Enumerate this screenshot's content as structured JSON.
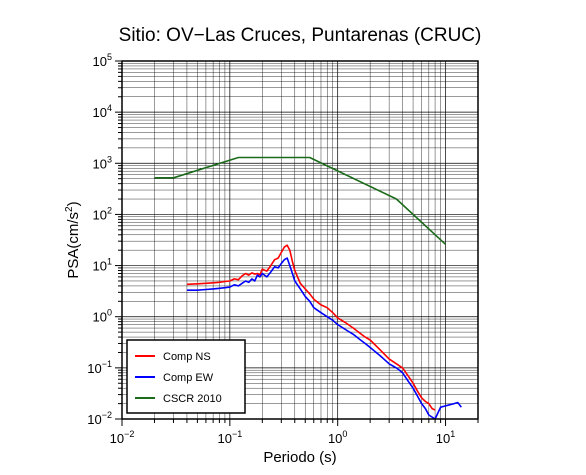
{
  "chart_data": {
    "type": "line",
    "title": "Sitio: OV−Las Cruces, Puntarenas (CRUC)",
    "xlabel": "Periodo (s)",
    "ylabel_main": "PSA(cm/s",
    "ylabel_sup": "2",
    "ylabel_close": ")",
    "xscale": "log",
    "yscale": "log",
    "grid": true,
    "xlim": [
      0.01,
      20
    ],
    "ylim": [
      0.01,
      100000
    ],
    "x_ticks": [
      {
        "value": 0.01,
        "base": "10",
        "exp": "−2"
      },
      {
        "value": 0.1,
        "base": "10",
        "exp": "−1"
      },
      {
        "value": 1,
        "base": "10",
        "exp": "0"
      },
      {
        "value": 10,
        "base": "10",
        "exp": "1"
      }
    ],
    "y_ticks": [
      {
        "value": 0.01,
        "base": "10",
        "exp": "−2"
      },
      {
        "value": 0.1,
        "base": "10",
        "exp": "−1"
      },
      {
        "value": 1,
        "base": "10",
        "exp": "0"
      },
      {
        "value": 10,
        "base": "10",
        "exp": "1"
      },
      {
        "value": 100,
        "base": "10",
        "exp": "2"
      },
      {
        "value": 1000,
        "base": "10",
        "exp": "3"
      },
      {
        "value": 10000,
        "base": "10",
        "exp": "4"
      },
      {
        "value": 100000,
        "base": "10",
        "exp": "5"
      }
    ],
    "legend_position": "bottom-left",
    "series": [
      {
        "name": "Comp NS",
        "color": "#ff0000",
        "x": [
          0.04,
          0.05,
          0.06,
          0.07,
          0.08,
          0.09,
          0.1,
          0.11,
          0.12,
          0.13,
          0.14,
          0.15,
          0.16,
          0.17,
          0.18,
          0.19,
          0.2,
          0.22,
          0.24,
          0.26,
          0.28,
          0.3,
          0.32,
          0.34,
          0.36,
          0.38,
          0.4,
          0.45,
          0.5,
          0.55,
          0.6,
          0.7,
          0.8,
          0.9,
          1.0,
          1.2,
          1.4,
          1.6,
          1.8,
          2.0,
          2.5,
          3.0,
          3.5,
          4.0,
          4.5,
          5.0,
          5.5,
          6.0,
          6.5,
          7.0,
          7.5,
          8.0
        ],
        "y": [
          4.3,
          4.4,
          4.5,
          4.6,
          4.7,
          4.9,
          5.0,
          5.5,
          5.3,
          6.3,
          7.0,
          6.5,
          7.2,
          6.8,
          7.0,
          6.6,
          8.5,
          7.8,
          10.0,
          13.0,
          14.0,
          18.0,
          23.0,
          25.0,
          20.0,
          12.0,
          8.0,
          4.5,
          3.5,
          2.8,
          2.2,
          1.7,
          1.5,
          1.2,
          0.95,
          0.75,
          0.6,
          0.48,
          0.4,
          0.35,
          0.22,
          0.15,
          0.12,
          0.1,
          0.07,
          0.05,
          0.035,
          0.026,
          0.022,
          0.02,
          0.016,
          0.015
        ]
      },
      {
        "name": "Comp EW",
        "color": "#0000ff",
        "x": [
          0.04,
          0.05,
          0.06,
          0.07,
          0.08,
          0.09,
          0.1,
          0.11,
          0.12,
          0.13,
          0.14,
          0.15,
          0.16,
          0.17,
          0.18,
          0.19,
          0.2,
          0.22,
          0.24,
          0.26,
          0.28,
          0.3,
          0.32,
          0.34,
          0.36,
          0.38,
          0.4,
          0.45,
          0.5,
          0.55,
          0.6,
          0.7,
          0.8,
          0.9,
          1.0,
          1.2,
          1.4,
          1.6,
          1.8,
          2.0,
          2.5,
          3.0,
          3.5,
          4.0,
          4.5,
          5.0,
          5.5,
          6.0,
          6.5,
          7.0,
          8.0,
          9.0,
          10.0,
          11.0,
          12.0,
          13.0,
          14.0
        ],
        "y": [
          3.3,
          3.3,
          3.4,
          3.5,
          3.6,
          3.7,
          3.8,
          4.2,
          4.0,
          4.5,
          5.0,
          4.7,
          5.5,
          5.0,
          6.5,
          6.0,
          7.0,
          6.0,
          7.5,
          9.5,
          9.0,
          11.0,
          13.0,
          14.0,
          10.0,
          7.0,
          5.0,
          3.5,
          2.5,
          2.0,
          1.5,
          1.2,
          1.0,
          0.85,
          0.7,
          0.55,
          0.45,
          0.36,
          0.3,
          0.25,
          0.17,
          0.12,
          0.1,
          0.08,
          0.055,
          0.04,
          0.028,
          0.02,
          0.016,
          0.012,
          0.01,
          0.017,
          0.018,
          0.019,
          0.02,
          0.021,
          0.017
        ]
      },
      {
        "name": "CSCR 2010",
        "color": "#1a6b1a",
        "x": [
          0.02,
          0.03,
          0.12,
          0.55,
          3.5,
          10.0
        ],
        "y": [
          520,
          520,
          1300,
          1300,
          200,
          26
        ]
      }
    ]
  }
}
